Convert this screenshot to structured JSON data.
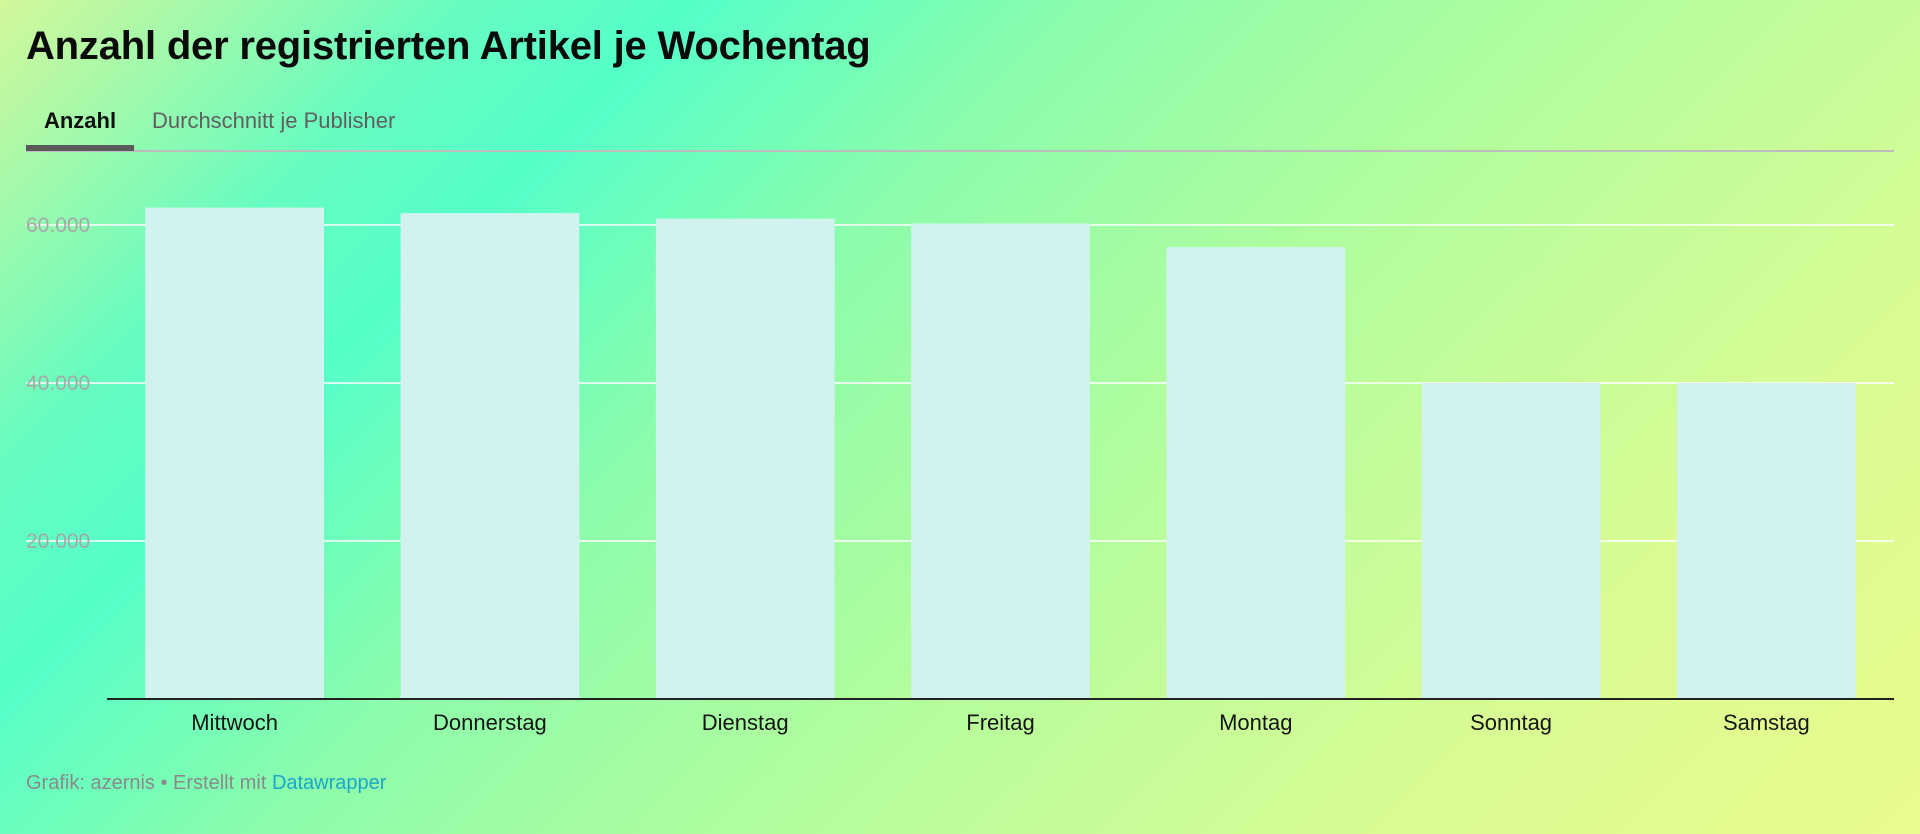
{
  "title": "Anzahl der registrierten Artikel je Wochentag",
  "tabs": [
    {
      "label": "Anzahl",
      "active": true
    },
    {
      "label": "Durchschnitt je Publisher",
      "active": false
    }
  ],
  "footer": {
    "prefix": "Grafik: azernis • Erstellt mit ",
    "link": "Datawrapper"
  },
  "colors": {
    "bar": "#d2f2ef",
    "gridline": "#ffffff",
    "axis": "#222222",
    "link": "#1aa6c9"
  },
  "chart_data": {
    "type": "bar",
    "categories": [
      "Mittwoch",
      "Donnerstag",
      "Dienstag",
      "Freitag",
      "Montag",
      "Sonntag",
      "Samstag"
    ],
    "values": [
      62200,
      61500,
      60800,
      60200,
      57200,
      40000,
      40000
    ],
    "yticks": [
      20000,
      40000,
      60000
    ],
    "ytick_labels": [
      "20.000",
      "40.000",
      "60.000"
    ],
    "ylim": [
      0,
      67000
    ],
    "grid": true,
    "title": "Anzahl der registrierten Artikel je Wochentag",
    "xlabel": "",
    "ylabel": ""
  }
}
